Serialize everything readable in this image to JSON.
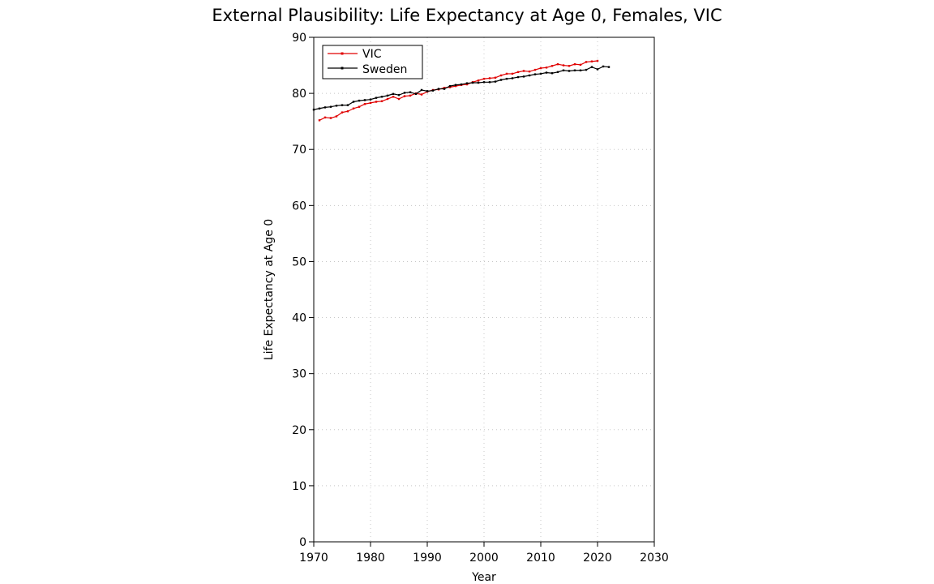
{
  "chart_data": {
    "type": "line",
    "title": "External Plausibility: Life Expectancy at Age 0, Females, VIC",
    "xlabel": "Year",
    "ylabel": "Life Expectancy at Age 0",
    "xlim": [
      1970,
      2030
    ],
    "ylim": [
      0,
      90
    ],
    "xticks": [
      1970,
      1980,
      1990,
      2000,
      2010,
      2020,
      2030
    ],
    "yticks": [
      0,
      10,
      20,
      30,
      40,
      50,
      60,
      70,
      80,
      90
    ],
    "grid": true,
    "legend_position": "top-left",
    "series": [
      {
        "name": "VIC",
        "color": "#e00000",
        "x": [
          1971,
          1972,
          1973,
          1974,
          1975,
          1976,
          1977,
          1978,
          1979,
          1980,
          1981,
          1982,
          1983,
          1984,
          1985,
          1986,
          1987,
          1988,
          1989,
          1990,
          1991,
          1992,
          1993,
          1994,
          1995,
          1996,
          1997,
          1998,
          1999,
          2000,
          2001,
          2002,
          2003,
          2004,
          2005,
          2006,
          2007,
          2008,
          2009,
          2010,
          2011,
          2012,
          2013,
          2014,
          2015,
          2016,
          2017,
          2018,
          2019,
          2020
        ],
        "values": [
          75.2,
          75.7,
          75.6,
          75.9,
          76.6,
          76.8,
          77.3,
          77.6,
          78.1,
          78.3,
          78.5,
          78.6,
          79.0,
          79.4,
          79.0,
          79.5,
          79.6,
          80.0,
          79.8,
          80.3,
          80.6,
          80.7,
          81.0,
          81.1,
          81.3,
          81.5,
          81.6,
          82.0,
          82.3,
          82.6,
          82.7,
          82.8,
          83.2,
          83.5,
          83.5,
          83.8,
          84.0,
          83.9,
          84.2,
          84.5,
          84.6,
          84.9,
          85.2,
          85.0,
          84.9,
          85.2,
          85.1,
          85.6,
          85.7,
          85.8
        ]
      },
      {
        "name": "Sweden",
        "color": "#000000",
        "x": [
          1970,
          1971,
          1972,
          1973,
          1974,
          1975,
          1976,
          1977,
          1978,
          1979,
          1980,
          1981,
          1982,
          1983,
          1984,
          1985,
          1986,
          1987,
          1988,
          1989,
          1990,
          1991,
          1992,
          1993,
          1994,
          1995,
          1996,
          1997,
          1998,
          1999,
          2000,
          2001,
          2002,
          2003,
          2004,
          2005,
          2006,
          2007,
          2008,
          2009,
          2010,
          2011,
          2012,
          2013,
          2014,
          2015,
          2016,
          2017,
          2018,
          2019,
          2020,
          2021,
          2022
        ],
        "values": [
          77.1,
          77.3,
          77.5,
          77.6,
          77.8,
          77.9,
          77.9,
          78.5,
          78.7,
          78.8,
          78.9,
          79.2,
          79.4,
          79.6,
          79.9,
          79.7,
          80.1,
          80.2,
          79.9,
          80.6,
          80.4,
          80.5,
          80.8,
          80.8,
          81.3,
          81.5,
          81.6,
          81.8,
          81.9,
          81.9,
          82.0,
          82.0,
          82.1,
          82.4,
          82.6,
          82.7,
          82.9,
          83.0,
          83.2,
          83.4,
          83.5,
          83.7,
          83.6,
          83.8,
          84.1,
          84.0,
          84.1,
          84.1,
          84.2,
          84.7,
          84.3,
          84.8,
          84.7
        ]
      }
    ]
  }
}
